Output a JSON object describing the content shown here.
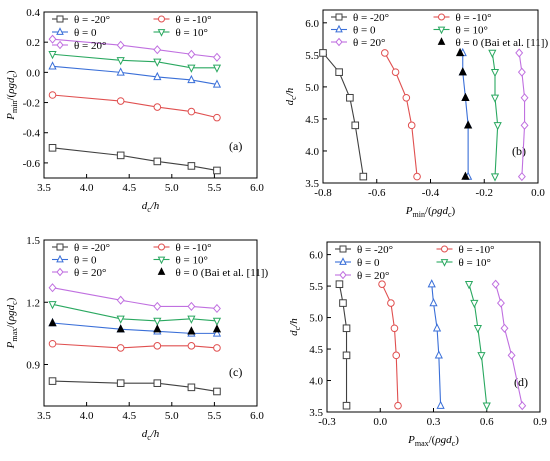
{
  "colors": {
    "theta_m20": "#404040",
    "theta_m10": "#e05050",
    "theta_0": "#3a6fd8",
    "theta_10": "#2aa860",
    "theta_20": "#c070e0",
    "bai": "#000000",
    "bai_c": "#000000"
  },
  "chart_data": [
    {
      "type": "line",
      "panel_label": "(a)",
      "xlabel": "dc/h",
      "ylabel": "Pmin/(ρgdc)",
      "xlim": [
        3.5,
        6.0
      ],
      "ylim": [
        -0.7,
        0.4
      ],
      "xticks": [
        "3.5",
        "4.0",
        "4.5",
        "5.0",
        "5.5",
        "6.0"
      ],
      "yticks": [
        "-0.6",
        "-0.4",
        "-0.2",
        "0.0",
        "0.2",
        "0.4"
      ],
      "legend_cols": 2,
      "legend_entries": [
        "θ = -20°",
        "θ = -10°",
        "θ = 0",
        "θ = 10°",
        "θ = 20°"
      ],
      "series": [
        {
          "name": "θ = -20°",
          "marker": "square",
          "x": [
            3.6,
            4.4,
            4.83,
            5.23,
            5.53
          ],
          "y": [
            -0.5,
            -0.55,
            -0.59,
            -0.62,
            -0.65
          ]
        },
        {
          "name": "θ = -10°",
          "marker": "circle",
          "x": [
            3.6,
            4.4,
            4.83,
            5.23,
            5.53
          ],
          "y": [
            -0.15,
            -0.19,
            -0.23,
            -0.26,
            -0.3
          ]
        },
        {
          "name": "θ = 0",
          "marker": "triangle-up",
          "x": [
            3.6,
            4.4,
            4.83,
            5.23,
            5.53
          ],
          "y": [
            0.04,
            0.0,
            -0.03,
            -0.05,
            -0.08
          ]
        },
        {
          "name": "θ = 10°",
          "marker": "triangle-down",
          "x": [
            3.6,
            4.4,
            4.83,
            5.23,
            5.53
          ],
          "y": [
            0.12,
            0.08,
            0.07,
            0.03,
            0.03
          ]
        },
        {
          "name": "θ = 20°",
          "marker": "diamond",
          "x": [
            3.6,
            4.4,
            4.83,
            5.23,
            5.53
          ],
          "y": [
            0.22,
            0.18,
            0.15,
            0.12,
            0.1
          ]
        }
      ]
    },
    {
      "type": "line",
      "panel_label": "(b)",
      "xlabel": "Pmin/(ρgdc)",
      "ylabel": "dc/h",
      "xlim": [
        -0.8,
        0.0
      ],
      "ylim": [
        3.5,
        6.2
      ],
      "xticks": [
        "-0.8",
        "-0.6",
        "-0.4",
        "-0.2",
        "0.0"
      ],
      "yticks": [
        "3.5",
        "4.0",
        "4.5",
        "5.0",
        "5.5",
        "6.0"
      ],
      "legend_cols": 2,
      "legend_entries": [
        "θ = -20°",
        "θ = -10°",
        "θ = 0",
        "θ = 10°",
        "θ = 20°",
        "θ = 0 (Bai et al. [11])"
      ],
      "series": [
        {
          "name": "θ = -20°",
          "marker": "square",
          "x": [
            -0.65,
            -0.68,
            -0.7,
            -0.74,
            -0.8
          ],
          "y": [
            3.6,
            4.4,
            4.83,
            5.23,
            5.53
          ]
        },
        {
          "name": "θ = -10°",
          "marker": "circle",
          "x": [
            -0.45,
            -0.47,
            -0.49,
            -0.53,
            -0.57
          ],
          "y": [
            3.6,
            4.4,
            4.83,
            5.23,
            5.53
          ]
        },
        {
          "name": "θ = 0",
          "marker": "triangle-up",
          "x": [
            -0.26,
            -0.26,
            -0.27,
            -0.28,
            -0.28
          ],
          "y": [
            3.6,
            4.4,
            4.83,
            5.23,
            5.53
          ]
        },
        {
          "name": "θ = 10°",
          "marker": "triangle-down",
          "x": [
            -0.16,
            -0.15,
            -0.16,
            -0.16,
            -0.17
          ],
          "y": [
            3.6,
            4.4,
            4.83,
            5.23,
            5.53
          ]
        },
        {
          "name": "θ = 20°",
          "marker": "diamond",
          "x": [
            -0.06,
            -0.05,
            -0.05,
            -0.06,
            -0.07
          ],
          "y": [
            3.6,
            4.4,
            4.83,
            5.23,
            5.53
          ]
        },
        {
          "name": "θ = 0 (Bai et al. [11])",
          "marker": "filled-triangle",
          "x": [
            -0.27,
            -0.26,
            -0.27,
            -0.28,
            -0.29
          ],
          "y": [
            3.6,
            4.4,
            4.83,
            5.23,
            5.53
          ]
        }
      ]
    },
    {
      "type": "line",
      "panel_label": "(c)",
      "xlabel": "dc/h",
      "ylabel": "Pmax/(ρgdc)",
      "xlim": [
        3.5,
        6.0
      ],
      "ylim": [
        0.7,
        1.5
      ],
      "xticks": [
        "3.5",
        "4.0",
        "4.5",
        "5.0",
        "5.5",
        "6.0"
      ],
      "yticks": [
        "0.9",
        "1.2",
        "1.5"
      ],
      "legend_cols": 2,
      "legend_entries": [
        "θ = -20°",
        "θ = -10°",
        "θ = 0",
        "θ = 10°",
        "θ = 20°",
        "θ = 0 (Bai et al. [11])"
      ],
      "series": [
        {
          "name": "θ = -20°",
          "marker": "square",
          "x": [
            3.6,
            4.4,
            4.83,
            5.23,
            5.53
          ],
          "y": [
            0.82,
            0.81,
            0.81,
            0.79,
            0.77
          ]
        },
        {
          "name": "θ = -10°",
          "marker": "circle",
          "x": [
            3.6,
            4.4,
            4.83,
            5.23,
            5.53
          ],
          "y": [
            1.0,
            0.98,
            0.99,
            0.99,
            0.98
          ]
        },
        {
          "name": "θ = 0",
          "marker": "triangle-up",
          "x": [
            3.6,
            4.4,
            4.83,
            5.23,
            5.53
          ],
          "y": [
            1.1,
            1.07,
            1.06,
            1.05,
            1.05
          ]
        },
        {
          "name": "θ = 10°",
          "marker": "triangle-down",
          "x": [
            3.6,
            4.4,
            4.83,
            5.23,
            5.53
          ],
          "y": [
            1.19,
            1.12,
            1.11,
            1.12,
            1.11
          ]
        },
        {
          "name": "θ = 20°",
          "marker": "diamond",
          "x": [
            3.6,
            4.4,
            4.83,
            5.23,
            5.53
          ],
          "y": [
            1.27,
            1.21,
            1.18,
            1.18,
            1.17
          ]
        },
        {
          "name": "θ = 0 (Bai et al. [11])",
          "marker": "filled-triangle",
          "x": [
            3.6,
            4.4,
            4.83,
            5.23,
            5.53
          ],
          "y": [
            1.1,
            1.07,
            1.07,
            1.06,
            1.07
          ]
        }
      ]
    },
    {
      "type": "line",
      "panel_label": "(d)",
      "xlabel": "Pmax/(ρgdc)",
      "ylabel": "dc/h",
      "xlim": [
        -0.3,
        0.9
      ],
      "ylim": [
        3.5,
        6.2
      ],
      "xticks": [
        "-0.3",
        "0.0",
        "0.3",
        "0.6",
        "0.9"
      ],
      "yticks": [
        "3.5",
        "4.0",
        "4.5",
        "5.0",
        "5.5",
        "6.0"
      ],
      "legend_cols": 2,
      "legend_entries": [
        "θ = -20°",
        "θ = -10°",
        "θ = 0",
        "θ = 10°",
        "θ = 20°"
      ],
      "series": [
        {
          "name": "θ = -20°",
          "marker": "square",
          "x": [
            -0.19,
            -0.19,
            -0.19,
            -0.21,
            -0.23
          ],
          "y": [
            3.6,
            4.4,
            4.83,
            5.23,
            5.53
          ]
        },
        {
          "name": "θ = -10°",
          "marker": "circle",
          "x": [
            0.1,
            0.09,
            0.08,
            0.06,
            0.01
          ],
          "y": [
            3.6,
            4.4,
            4.83,
            5.23,
            5.53
          ]
        },
        {
          "name": "θ = 0",
          "marker": "triangle-up",
          "x": [
            0.34,
            0.33,
            0.32,
            0.3,
            0.29
          ],
          "y": [
            3.6,
            4.4,
            4.83,
            5.23,
            5.53
          ]
        },
        {
          "name": "θ = 10°",
          "marker": "triangle-down",
          "x": [
            0.6,
            0.57,
            0.55,
            0.53,
            0.5
          ],
          "y": [
            3.6,
            4.4,
            4.83,
            5.23,
            5.53
          ]
        },
        {
          "name": "θ = 20°",
          "marker": "diamond",
          "x": [
            0.8,
            0.74,
            0.7,
            0.68,
            0.65
          ],
          "y": [
            3.6,
            4.4,
            4.83,
            5.23,
            5.53
          ]
        }
      ]
    }
  ]
}
